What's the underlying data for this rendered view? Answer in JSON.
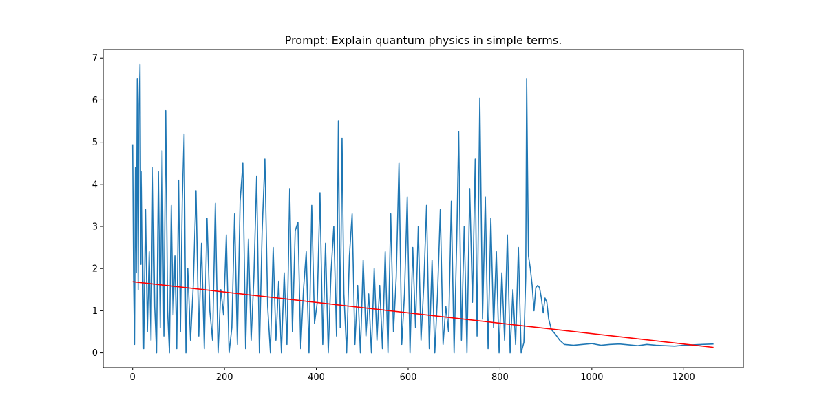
{
  "chart_data": {
    "type": "line",
    "title": "Prompt: Explain quantum physics in simple terms.",
    "xlabel": "",
    "ylabel": "",
    "xlim": [
      -64,
      1330
    ],
    "ylim": [
      -0.35,
      7.2
    ],
    "x_ticks": [
      0,
      200,
      400,
      600,
      800,
      1000,
      1200
    ],
    "y_ticks": [
      0,
      1,
      2,
      3,
      4,
      5,
      6,
      7
    ],
    "grid": false,
    "legend": "none",
    "series": [
      {
        "color": "#1f77b4",
        "x": [
          0,
          2,
          4,
          6,
          8,
          10,
          12,
          14,
          16,
          18,
          20,
          24,
          28,
          32,
          36,
          40,
          44,
          48,
          52,
          56,
          60,
          64,
          68,
          72,
          76,
          80,
          84,
          88,
          92,
          96,
          100,
          104,
          108,
          112,
          116,
          120,
          126,
          132,
          138,
          144,
          150,
          156,
          162,
          168,
          174,
          180,
          186,
          192,
          198,
          204,
          210,
          216,
          222,
          228,
          234,
          240,
          246,
          252,
          258,
          264,
          270,
          276,
          282,
          288,
          294,
          300,
          306,
          312,
          318,
          324,
          330,
          336,
          342,
          348,
          354,
          360,
          366,
          372,
          378,
          384,
          390,
          396,
          402,
          408,
          414,
          420,
          426,
          432,
          438,
          444,
          448,
          452,
          456,
          460,
          466,
          472,
          478,
          484,
          490,
          496,
          502,
          508,
          514,
          520,
          526,
          532,
          538,
          544,
          550,
          556,
          562,
          568,
          574,
          580,
          586,
          592,
          598,
          604,
          610,
          616,
          622,
          628,
          634,
          640,
          646,
          652,
          658,
          664,
          670,
          676,
          682,
          688,
          694,
          700,
          706,
          710,
          716,
          722,
          728,
          734,
          740,
          746,
          750,
          756,
          762,
          768,
          774,
          780,
          786,
          792,
          798,
          804,
          810,
          816,
          822,
          828,
          834,
          840,
          846,
          852,
          856,
          858,
          860,
          862,
          866,
          870,
          874,
          878,
          882,
          886,
          890,
          894,
          898,
          902,
          906,
          912,
          920,
          930,
          940,
          960,
          980,
          1000,
          1020,
          1040,
          1060,
          1080,
          1100,
          1120,
          1140,
          1160,
          1180,
          1200,
          1220,
          1240,
          1265
        ],
        "y": [
          4.95,
          1.8,
          0.2,
          4.4,
          1.9,
          6.5,
          1.5,
          5.9,
          6.85,
          2.1,
          4.3,
          0.1,
          3.4,
          0.5,
          2.4,
          0.3,
          4.4,
          1.1,
          0.0,
          4.3,
          0.6,
          4.8,
          0.4,
          5.75,
          1.0,
          0.0,
          3.5,
          0.9,
          2.3,
          0.1,
          4.1,
          0.5,
          3.6,
          5.2,
          0.0,
          2.0,
          0.3,
          1.6,
          3.85,
          0.4,
          2.6,
          0.1,
          3.2,
          1.0,
          0.3,
          3.55,
          0.0,
          1.5,
          0.9,
          2.8,
          0.0,
          0.6,
          3.3,
          0.2,
          3.6,
          4.5,
          0.1,
          2.7,
          0.3,
          1.8,
          4.2,
          0.0,
          2.9,
          4.6,
          1.1,
          0.0,
          2.5,
          0.3,
          1.7,
          0.0,
          1.9,
          0.2,
          3.9,
          0.5,
          2.9,
          3.1,
          0.1,
          1.5,
          2.4,
          0.0,
          3.5,
          0.7,
          1.2,
          3.8,
          0.2,
          2.6,
          0.0,
          1.9,
          3.0,
          0.4,
          5.5,
          0.6,
          5.1,
          1.4,
          0.0,
          2.3,
          3.3,
          0.2,
          1.6,
          0.0,
          2.2,
          0.4,
          1.4,
          0.0,
          2.0,
          0.3,
          1.6,
          0.1,
          2.4,
          0.0,
          3.3,
          0.5,
          1.8,
          4.5,
          0.2,
          1.4,
          3.7,
          0.0,
          2.5,
          0.6,
          3.0,
          0.3,
          1.6,
          3.5,
          0.1,
          2.2,
          0.0,
          1.4,
          3.4,
          0.2,
          1.1,
          0.5,
          3.6,
          0.0,
          2.8,
          5.25,
          0.3,
          3.0,
          0.0,
          3.9,
          1.2,
          4.6,
          0.4,
          6.05,
          0.8,
          3.7,
          0.1,
          3.2,
          0.6,
          2.4,
          0.0,
          1.9,
          0.3,
          2.8,
          0.0,
          1.5,
          0.2,
          2.5,
          0.0,
          0.25,
          1.8,
          6.5,
          4.3,
          2.3,
          2.0,
          1.6,
          1.0,
          1.55,
          1.6,
          1.55,
          1.3,
          0.95,
          1.3,
          1.2,
          0.8,
          0.55,
          0.45,
          0.3,
          0.2,
          0.18,
          0.2,
          0.22,
          0.18,
          0.2,
          0.21,
          0.19,
          0.17,
          0.2,
          0.18,
          0.17,
          0.16,
          0.18,
          0.19,
          0.2,
          0.21
        ]
      },
      {
        "color": "#ff0000",
        "x": [
          0,
          1265
        ],
        "y": [
          1.69,
          0.13
        ]
      }
    ]
  }
}
